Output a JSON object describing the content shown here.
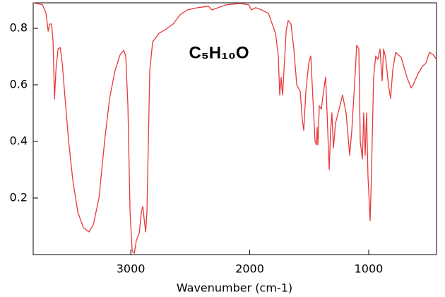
{
  "chart_data": {
    "type": "line",
    "annotation": "C₅H₁₀O",
    "x_label": "Wavenumber (cm-1)",
    "color": "#e8383a",
    "xlim": [
      3820,
      430
    ],
    "ylim": [
      0,
      0.89
    ],
    "xticks": [
      3000,
      2000,
      1000
    ],
    "yticks": [
      0.2,
      0.4,
      0.6,
      0.8
    ],
    "x": [
      3819,
      3742,
      3712,
      3694,
      3682,
      3665,
      3653,
      3641,
      3629,
      3611,
      3593,
      3576,
      3552,
      3522,
      3487,
      3445,
      3398,
      3350,
      3315,
      3267,
      3220,
      3178,
      3131,
      3089,
      3059,
      3042,
      3024,
      3006,
      2988,
      2970,
      2953,
      2929,
      2911,
      2899,
      2887,
      2875,
      2864,
      2852,
      2840,
      2816,
      2763,
      2703,
      2644,
      2585,
      2525,
      2436,
      2347,
      2318,
      2199,
      2080,
      2009,
      1985,
      1950,
      1902,
      1843,
      1783,
      1760,
      1748,
      1736,
      1724,
      1712,
      1694,
      1677,
      1653,
      1629,
      1605,
      1576,
      1558,
      1546,
      1528,
      1504,
      1487,
      1469,
      1451,
      1439,
      1433,
      1427,
      1415,
      1398,
      1380,
      1362,
      1350,
      1332,
      1320,
      1309,
      1297,
      1279,
      1249,
      1220,
      1190,
      1160,
      1142,
      1119,
      1101,
      1083,
      1071,
      1053,
      1042,
      1030,
      1018,
      1006,
      988,
      976,
      959,
      941,
      923,
      905,
      887,
      875,
      858,
      834,
      816,
      798,
      774,
      727,
      679,
      644,
      626,
      585,
      549,
      519,
      490,
      460,
      430
    ],
    "values": [
      0.89,
      0.883,
      0.853,
      0.79,
      0.815,
      0.815,
      0.752,
      0.55,
      0.652,
      0.727,
      0.732,
      0.677,
      0.552,
      0.4,
      0.263,
      0.15,
      0.095,
      0.08,
      0.105,
      0.2,
      0.4,
      0.552,
      0.652,
      0.707,
      0.722,
      0.702,
      0.526,
      0.15,
      0.012,
      0.005,
      0.05,
      0.075,
      0.15,
      0.17,
      0.125,
      0.08,
      0.15,
      0.4,
      0.652,
      0.752,
      0.782,
      0.797,
      0.815,
      0.848,
      0.865,
      0.873,
      0.878,
      0.865,
      0.883,
      0.888,
      0.883,
      0.865,
      0.873,
      0.865,
      0.853,
      0.782,
      0.702,
      0.564,
      0.627,
      0.564,
      0.652,
      0.79,
      0.828,
      0.815,
      0.727,
      0.6,
      0.577,
      0.476,
      0.439,
      0.577,
      0.677,
      0.702,
      0.552,
      0.4,
      0.388,
      0.451,
      0.388,
      0.526,
      0.514,
      0.577,
      0.627,
      0.501,
      0.3,
      0.439,
      0.501,
      0.376,
      0.464,
      0.514,
      0.564,
      0.501,
      0.351,
      0.439,
      0.6,
      0.74,
      0.727,
      0.4,
      0.338,
      0.501,
      0.351,
      0.501,
      0.276,
      0.12,
      0.3,
      0.627,
      0.702,
      0.69,
      0.727,
      0.614,
      0.727,
      0.697,
      0.6,
      0.552,
      0.652,
      0.715,
      0.697,
      0.627,
      0.589,
      0.6,
      0.64,
      0.665,
      0.677,
      0.715,
      0.707,
      0.69
    ]
  }
}
